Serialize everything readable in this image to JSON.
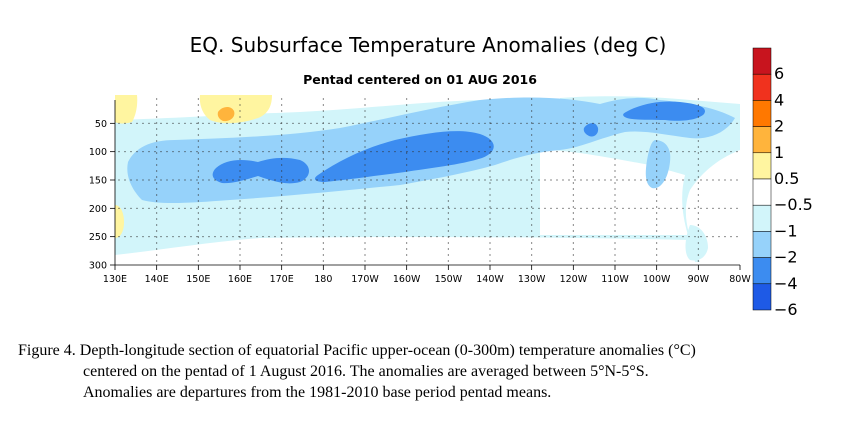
{
  "chart_data": {
    "type": "heatmap",
    "title": "EQ. Subsurface Temperature Anomalies (deg C)",
    "subtitle": "Pentad centered on 01 AUG 2016",
    "xlabel": "",
    "ylabel": "",
    "x_ticks": [
      "130E",
      "140E",
      "150E",
      "160E",
      "170E",
      "180",
      "170W",
      "160W",
      "150W",
      "140W",
      "130W",
      "120W",
      "110W",
      "100W",
      "90W",
      "80W"
    ],
    "y_ticks": [
      "50",
      "100",
      "150",
      "200",
      "250",
      "300"
    ],
    "xlim": [
      130,
      280
    ],
    "ylim": [
      300,
      0
    ],
    "grid": true,
    "colorbar": {
      "labels": [
        "6",
        "4",
        "2",
        "1",
        "0.5",
        "−0.5",
        "−1",
        "−2",
        "−4",
        "−6"
      ],
      "colors": [
        "#c8141e",
        "#f0321e",
        "#ff7800",
        "#ffb43c",
        "#fff5a0",
        "#ffffff",
        "#d2f5fa",
        "#96d2fa",
        "#3c8cf0",
        "#1e5ae6"
      ],
      "placement": "right"
    },
    "anomaly_regions": [
      {
        "level": "0.5 to 1",
        "color": "#fff5a0",
        "lon_range": [
          130,
          135
        ],
        "depth_range": [
          10,
          45
        ]
      },
      {
        "level": "0.5 to 1",
        "color": "#fff5a0",
        "lon_range": [
          150,
          167
        ],
        "depth_range": [
          10,
          55
        ]
      },
      {
        "level": "1 to 2",
        "color": "#ffb43c",
        "lon_range": [
          156,
          160
        ],
        "depth_range": [
          30,
          45
        ]
      },
      {
        "level": "0.5 to 1",
        "color": "#fff5a0",
        "lon_range": [
          130,
          132
        ],
        "depth_range": [
          190,
          240
        ]
      },
      {
        "level": "-0.5 to -1",
        "color": "#d2f5fa",
        "lon_range": [
          130,
          280
        ],
        "depth_range": [
          10,
          290
        ]
      },
      {
        "level": "-1 to -2",
        "color": "#96d2fa",
        "lon_range": [
          134,
          272
        ],
        "depth_range": [
          15,
          210
        ]
      },
      {
        "level": "-2 to -4",
        "color": "#3c8cf0",
        "lon_range": [
          155,
          178
        ],
        "depth_range": [
          110,
          175
        ]
      },
      {
        "level": "-2 to -4",
        "color": "#3c8cf0",
        "lon_range": [
          178,
          229
        ],
        "depth_range": [
          85,
          150
        ]
      },
      {
        "level": "-2 to -4",
        "color": "#3c8cf0",
        "lon_range": [
          234,
          238
        ],
        "depth_range": [
          50,
          70
        ]
      },
      {
        "level": "-2 to -4",
        "color": "#3c8cf0",
        "lon_range": [
          250,
          268
        ],
        "depth_range": [
          20,
          55
        ]
      }
    ]
  },
  "caption": {
    "line1": "Figure 4. Depth-longitude section of equatorial Pacific upper-ocean (0-300m) temperature anomalies (°C)",
    "line2": "centered on the pentad of 1 August 2016. The anomalies are averaged between 5°N-5°S.",
    "line3": "Anomalies are departures from the 1981-2010 base period pentad means."
  }
}
